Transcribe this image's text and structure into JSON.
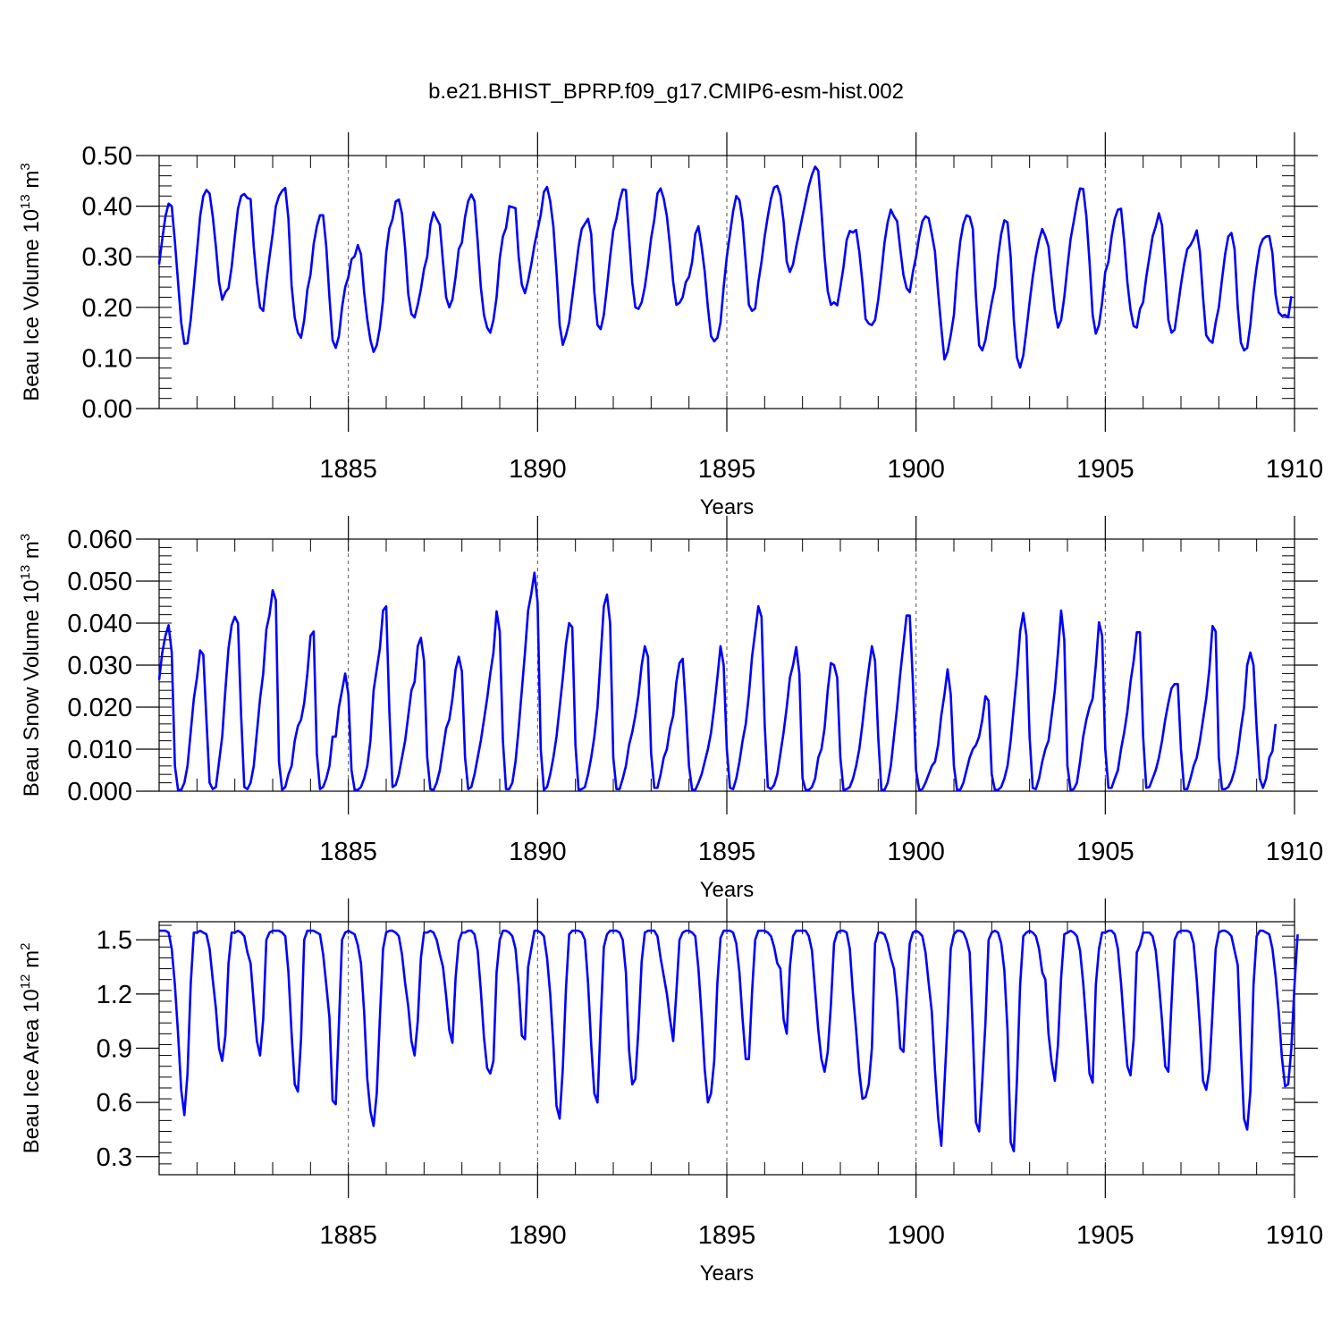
{
  "title": "b.e21.BHIST_BPRP.f09_g17.CMIP6-esm-hist.002",
  "line_color": "#0000ff",
  "chart_data": [
    {
      "type": "line",
      "name": "ice-volume",
      "ylabel": "Beau Ice Volume 10",
      "ylabel_exp": "13",
      "ylabel_unit": " m",
      "ylabel_unit_exp": "3",
      "xlabel": "Years",
      "xlim": [
        1880.0,
        1910.0
      ],
      "ylim": [
        0.0,
        0.5
      ],
      "x_ticks": [
        1885,
        1890,
        1895,
        1900,
        1905,
        1910
      ],
      "x_tick_labels": [
        "1885",
        "1890",
        "1895",
        "1900",
        "1905",
        "1910"
      ],
      "y_ticks": [
        0.0,
        0.1,
        0.2,
        0.3,
        0.4,
        0.5
      ],
      "y_tick_labels": [
        "0.00",
        "0.10",
        "0.20",
        "0.30",
        "0.40",
        "0.50"
      ],
      "y_minor_step": 0.02,
      "x_minor_step": 1,
      "start": 1880.0,
      "step": 0.0833333,
      "values": [
        0.285,
        0.335,
        0.38,
        0.405,
        0.4,
        0.33,
        0.25,
        0.17,
        0.128,
        0.129,
        0.175,
        0.24,
        0.31,
        0.38,
        0.42,
        0.432,
        0.425,
        0.38,
        0.32,
        0.25,
        0.215,
        0.23,
        0.238,
        0.28,
        0.34,
        0.395,
        0.42,
        0.424,
        0.416,
        0.414,
        0.32,
        0.25,
        0.2,
        0.193,
        0.25,
        0.3,
        0.345,
        0.4,
        0.42,
        0.43,
        0.436,
        0.375,
        0.243,
        0.18,
        0.15,
        0.14,
        0.175,
        0.235,
        0.265,
        0.325,
        0.36,
        0.382,
        0.382,
        0.32,
        0.22,
        0.135,
        0.12,
        0.143,
        0.2,
        0.24,
        0.26,
        0.295,
        0.301,
        0.323,
        0.305,
        0.23,
        0.176,
        0.135,
        0.112,
        0.125,
        0.16,
        0.215,
        0.308,
        0.356,
        0.374,
        0.409,
        0.413,
        0.385,
        0.317,
        0.226,
        0.187,
        0.18,
        0.205,
        0.236,
        0.276,
        0.3,
        0.363,
        0.388,
        0.375,
        0.363,
        0.29,
        0.22,
        0.2,
        0.216,
        0.26,
        0.315,
        0.328,
        0.379,
        0.41,
        0.423,
        0.41,
        0.33,
        0.24,
        0.185,
        0.16,
        0.15,
        0.175,
        0.22,
        0.297,
        0.34,
        0.357,
        0.4,
        0.398,
        0.396,
        0.3,
        0.245,
        0.228,
        0.253,
        0.285,
        0.323,
        0.353,
        0.383,
        0.428,
        0.438,
        0.41,
        0.36,
        0.27,
        0.165,
        0.126,
        0.145,
        0.17,
        0.22,
        0.27,
        0.32,
        0.355,
        0.365,
        0.375,
        0.345,
        0.23,
        0.165,
        0.157,
        0.185,
        0.24,
        0.3,
        0.352,
        0.375,
        0.411,
        0.433,
        0.432,
        0.34,
        0.25,
        0.2,
        0.197,
        0.21,
        0.24,
        0.285,
        0.337,
        0.373,
        0.425,
        0.435,
        0.415,
        0.38,
        0.32,
        0.25,
        0.205,
        0.209,
        0.22,
        0.25,
        0.26,
        0.29,
        0.345,
        0.36,
        0.32,
        0.27,
        0.2,
        0.143,
        0.133,
        0.14,
        0.17,
        0.24,
        0.3,
        0.345,
        0.39,
        0.42,
        0.412,
        0.37,
        0.29,
        0.205,
        0.193,
        0.198,
        0.25,
        0.29,
        0.34,
        0.38,
        0.415,
        0.437,
        0.44,
        0.421,
        0.37,
        0.29,
        0.27,
        0.285,
        0.32,
        0.35,
        0.38,
        0.41,
        0.44,
        0.462,
        0.478,
        0.47,
        0.39,
        0.3,
        0.232,
        0.205,
        0.21,
        0.204,
        0.24,
        0.28,
        0.333,
        0.351,
        0.348,
        0.353,
        0.31,
        0.25,
        0.177,
        0.168,
        0.165,
        0.175,
        0.215,
        0.268,
        0.328,
        0.368,
        0.393,
        0.38,
        0.37,
        0.315,
        0.264,
        0.238,
        0.23,
        0.27,
        0.3,
        0.34,
        0.37,
        0.38,
        0.376,
        0.345,
        0.31,
        0.23,
        0.16,
        0.097,
        0.112,
        0.145,
        0.185,
        0.27,
        0.33,
        0.365,
        0.382,
        0.379,
        0.355,
        0.22,
        0.125,
        0.115,
        0.135,
        0.175,
        0.21,
        0.24,
        0.3,
        0.345,
        0.372,
        0.368,
        0.3,
        0.175,
        0.101,
        0.081,
        0.105,
        0.155,
        0.21,
        0.26,
        0.302,
        0.333,
        0.355,
        0.34,
        0.32,
        0.255,
        0.195,
        0.16,
        0.175,
        0.22,
        0.28,
        0.335,
        0.37,
        0.406,
        0.435,
        0.434,
        0.38,
        0.29,
        0.185,
        0.148,
        0.165,
        0.21,
        0.27,
        0.29,
        0.34,
        0.375,
        0.393,
        0.395,
        0.33,
        0.25,
        0.195,
        0.163,
        0.16,
        0.197,
        0.21,
        0.26,
        0.3,
        0.34,
        0.36,
        0.386,
        0.362,
        0.27,
        0.175,
        0.15,
        0.156,
        0.2,
        0.245,
        0.285,
        0.315,
        0.323,
        0.335,
        0.352,
        0.31,
        0.22,
        0.145,
        0.135,
        0.13,
        0.17,
        0.2,
        0.255,
        0.305,
        0.34,
        0.347,
        0.315,
        0.2,
        0.13,
        0.115,
        0.12,
        0.165,
        0.23,
        0.28,
        0.32,
        0.335,
        0.34,
        0.341,
        0.307,
        0.225,
        0.19,
        0.183,
        0.185,
        0.18,
        0.222
      ]
    },
    {
      "type": "line",
      "name": "snow-volume",
      "ylabel": "Beau Snow Volume 10",
      "ylabel_exp": "13",
      "ylabel_unit": " m",
      "ylabel_unit_exp": "3",
      "xlabel": "Years",
      "xlim": [
        1880.0,
        1910.0
      ],
      "ylim": [
        0.0,
        0.06
      ],
      "x_ticks": [
        1885,
        1890,
        1895,
        1900,
        1905,
        1910
      ],
      "x_tick_labels": [
        "1885",
        "1890",
        "1895",
        "1900",
        "1905",
        "1910"
      ],
      "y_ticks": [
        0.0,
        0.01,
        0.02,
        0.03,
        0.04,
        0.05,
        0.06
      ],
      "y_tick_labels": [
        "0.000",
        "0.010",
        "0.020",
        "0.030",
        "0.040",
        "0.050",
        "0.060"
      ],
      "y_minor_step": 0.002,
      "x_minor_step": 1,
      "start": 1880.0,
      "step": 0.0833333,
      "values": [
        0.0265,
        0.033,
        0.037,
        0.0395,
        0.033,
        0.006,
        0.0003,
        0.0003,
        0.002,
        0.006,
        0.014,
        0.022,
        0.027,
        0.0335,
        0.0325,
        0.017,
        0.002,
        0.0005,
        0.001,
        0.007,
        0.013,
        0.024,
        0.034,
        0.0395,
        0.0415,
        0.04,
        0.018,
        0.001,
        0.0005,
        0.002,
        0.006,
        0.014,
        0.022,
        0.028,
        0.0385,
        0.042,
        0.0478,
        0.0455,
        0.007,
        0.0003,
        0.001,
        0.004,
        0.006,
        0.012,
        0.0155,
        0.017,
        0.021,
        0.028,
        0.037,
        0.038,
        0.009,
        0.0005,
        0.001,
        0.003,
        0.006,
        0.013,
        0.013,
        0.02,
        0.024,
        0.028,
        0.023,
        0.005,
        0.0003,
        0.0003,
        0.001,
        0.003,
        0.006,
        0.012,
        0.024,
        0.029,
        0.034,
        0.043,
        0.044,
        0.019,
        0.001,
        0.0015,
        0.004,
        0.008,
        0.012,
        0.018,
        0.024,
        0.026,
        0.0345,
        0.0365,
        0.031,
        0.008,
        0.0005,
        0.0003,
        0.002,
        0.005,
        0.01,
        0.015,
        0.017,
        0.022,
        0.029,
        0.032,
        0.0285,
        0.008,
        0.0005,
        0.001,
        0.004,
        0.008,
        0.012,
        0.017,
        0.022,
        0.028,
        0.033,
        0.0428,
        0.038,
        0.012,
        0.0005,
        0.0005,
        0.002,
        0.007,
        0.015,
        0.024,
        0.033,
        0.043,
        0.047,
        0.052,
        0.045,
        0.01,
        0.0003,
        0.001,
        0.004,
        0.008,
        0.013,
        0.02,
        0.027,
        0.035,
        0.04,
        0.039,
        0.011,
        0.0003,
        0.0005,
        0.001,
        0.004,
        0.008,
        0.013,
        0.02,
        0.032,
        0.044,
        0.0468,
        0.04,
        0.008,
        0.0005,
        0.0005,
        0.003,
        0.006,
        0.011,
        0.014,
        0.018,
        0.023,
        0.03,
        0.0345,
        0.032,
        0.009,
        0.0008,
        0.0008,
        0.004,
        0.008,
        0.01,
        0.015,
        0.018,
        0.026,
        0.0305,
        0.0315,
        0.02,
        0.006,
        0.0003,
        0.0003,
        0.002,
        0.004,
        0.007,
        0.01,
        0.014,
        0.02,
        0.027,
        0.0345,
        0.03,
        0.01,
        0.0008,
        0.0005,
        0.003,
        0.007,
        0.012,
        0.016,
        0.023,
        0.032,
        0.038,
        0.044,
        0.0415,
        0.016,
        0.001,
        0.0005,
        0.0015,
        0.004,
        0.009,
        0.014,
        0.02,
        0.027,
        0.03,
        0.0343,
        0.028,
        0.003,
        0.0003,
        0.0003,
        0.001,
        0.003,
        0.008,
        0.01,
        0.015,
        0.024,
        0.0305,
        0.03,
        0.027,
        0.008,
        0.0003,
        0.0005,
        0.001,
        0.003,
        0.006,
        0.01,
        0.016,
        0.023,
        0.029,
        0.0345,
        0.031,
        0.013,
        0.0003,
        0.0003,
        0.002,
        0.006,
        0.013,
        0.02,
        0.028,
        0.035,
        0.0418,
        0.0418,
        0.026,
        0.005,
        0.0003,
        0.0005,
        0.002,
        0.004,
        0.006,
        0.007,
        0.011,
        0.018,
        0.023,
        0.029,
        0.023,
        0.006,
        0.0003,
        0.0003,
        0.002,
        0.005,
        0.008,
        0.01,
        0.011,
        0.013,
        0.017,
        0.0226,
        0.0215,
        0.004,
        0.0003,
        0.0003,
        0.001,
        0.003,
        0.006,
        0.012,
        0.02,
        0.028,
        0.038,
        0.0424,
        0.037,
        0.013,
        0.0008,
        0.0005,
        0.003,
        0.007,
        0.01,
        0.012,
        0.018,
        0.024,
        0.033,
        0.043,
        0.036,
        0.006,
        0.0003,
        0.0005,
        0.002,
        0.007,
        0.013,
        0.017,
        0.02,
        0.022,
        0.03,
        0.0402,
        0.037,
        0.01,
        0.0008,
        0.0008,
        0.003,
        0.005,
        0.01,
        0.014,
        0.019,
        0.026,
        0.031,
        0.0378,
        0.0378,
        0.013,
        0.0008,
        0.001,
        0.003,
        0.005,
        0.008,
        0.012,
        0.017,
        0.021,
        0.0245,
        0.0255,
        0.0255,
        0.01,
        0.0005,
        0.0005,
        0.003,
        0.006,
        0.008,
        0.012,
        0.017,
        0.022,
        0.029,
        0.0393,
        0.038,
        0.008,
        0.0005,
        0.0005,
        0.001,
        0.0025,
        0.005,
        0.009,
        0.015,
        0.02,
        0.03,
        0.033,
        0.03,
        0.015,
        0.003,
        0.0008,
        0.003,
        0.008,
        0.0095,
        0.016
      ]
    },
    {
      "type": "line",
      "name": "ice-area",
      "ylabel": "Beau Ice Area 10",
      "ylabel_exp": "12",
      "ylabel_unit": " m",
      "ylabel_unit_exp": "2",
      "xlabel": "Years",
      "xlim": [
        1880.0,
        1910.0
      ],
      "ylim": [
        0.2,
        1.6
      ],
      "x_ticks": [
        1885,
        1890,
        1895,
        1900,
        1905,
        1910
      ],
      "x_tick_labels": [
        "1885",
        "1890",
        "1895",
        "1900",
        "1905",
        "1910"
      ],
      "y_ticks": [
        0.3,
        0.6,
        0.9,
        1.2,
        1.5
      ],
      "y_tick_labels": [
        "0.3",
        "0.6",
        "0.9",
        "1.2",
        "1.5"
      ],
      "y_minor_step": 0.06,
      "x_minor_step": 1,
      "start": 1880.0,
      "step": 0.0833333,
      "values": [
        1.55,
        1.55,
        1.55,
        1.54,
        1.45,
        1.25,
        0.98,
        0.67,
        0.53,
        0.76,
        1.25,
        1.54,
        1.54,
        1.55,
        1.54,
        1.53,
        1.45,
        1.28,
        1.12,
        0.9,
        0.83,
        0.97,
        1.37,
        1.54,
        1.54,
        1.55,
        1.54,
        1.52,
        1.43,
        1.37,
        1.15,
        0.94,
        0.86,
        1.06,
        1.5,
        1.54,
        1.55,
        1.55,
        1.55,
        1.54,
        1.52,
        1.32,
        0.98,
        0.7,
        0.66,
        0.95,
        1.5,
        1.55,
        1.55,
        1.55,
        1.54,
        1.53,
        1.42,
        1.25,
        1.07,
        0.61,
        0.59,
        1.03,
        1.5,
        1.54,
        1.55,
        1.54,
        1.53,
        1.47,
        1.37,
        1.1,
        0.73,
        0.55,
        0.47,
        0.65,
        1.07,
        1.45,
        1.54,
        1.55,
        1.55,
        1.54,
        1.52,
        1.42,
        1.26,
        1.13,
        0.94,
        0.86,
        1.05,
        1.4,
        1.54,
        1.54,
        1.55,
        1.54,
        1.5,
        1.42,
        1.35,
        1.19,
        1.0,
        0.93,
        1.29,
        1.49,
        1.54,
        1.54,
        1.55,
        1.55,
        1.53,
        1.44,
        1.22,
        0.96,
        0.79,
        0.76,
        0.83,
        1.32,
        1.5,
        1.55,
        1.55,
        1.54,
        1.52,
        1.45,
        1.25,
        0.97,
        0.95,
        1.35,
        1.45,
        1.55,
        1.55,
        1.54,
        1.52,
        1.4,
        1.2,
        0.92,
        0.58,
        0.51,
        0.79,
        1.23,
        1.53,
        1.55,
        1.55,
        1.55,
        1.54,
        1.5,
        1.26,
        0.92,
        0.65,
        0.6,
        1.05,
        1.46,
        1.53,
        1.55,
        1.55,
        1.55,
        1.54,
        1.5,
        1.32,
        0.89,
        0.7,
        0.73,
        1.01,
        1.38,
        1.54,
        1.55,
        1.55,
        1.55,
        1.52,
        1.4,
        1.3,
        1.2,
        1.06,
        0.94,
        1.21,
        1.5,
        1.54,
        1.55,
        1.55,
        1.54,
        1.52,
        1.34,
        1.08,
        0.78,
        0.6,
        0.65,
        0.83,
        1.26,
        1.51,
        1.55,
        1.55,
        1.55,
        1.54,
        1.48,
        1.32,
        1.06,
        0.84,
        0.84,
        1.21,
        1.5,
        1.55,
        1.55,
        1.55,
        1.54,
        1.52,
        1.46,
        1.37,
        1.34,
        1.06,
        0.98,
        1.35,
        1.52,
        1.55,
        1.55,
        1.55,
        1.55,
        1.52,
        1.44,
        1.22,
        1.0,
        0.84,
        0.77,
        0.88,
        1.14,
        1.48,
        1.54,
        1.55,
        1.55,
        1.54,
        1.45,
        1.2,
        1.0,
        0.77,
        0.62,
        0.63,
        0.7,
        0.9,
        1.48,
        1.54,
        1.54,
        1.53,
        1.48,
        1.4,
        1.34,
        1.17,
        0.9,
        0.88,
        1.2,
        1.48,
        1.54,
        1.55,
        1.54,
        1.52,
        1.43,
        1.26,
        1.1,
        0.78,
        0.52,
        0.36,
        0.7,
        1.05,
        1.45,
        1.53,
        1.55,
        1.55,
        1.54,
        1.5,
        1.43,
        0.99,
        0.49,
        0.44,
        0.72,
        1.04,
        1.5,
        1.54,
        1.55,
        1.54,
        1.48,
        1.33,
        1.0,
        0.38,
        0.33,
        0.73,
        1.25,
        1.52,
        1.54,
        1.55,
        1.54,
        1.52,
        1.45,
        1.32,
        1.28,
        0.98,
        0.82,
        0.72,
        0.92,
        1.29,
        1.53,
        1.54,
        1.55,
        1.54,
        1.52,
        1.44,
        1.26,
        1.03,
        0.76,
        0.71,
        1.25,
        1.45,
        1.54,
        1.54,
        1.55,
        1.55,
        1.53,
        1.45,
        1.26,
        1.02,
        0.8,
        0.75,
        0.95,
        1.43,
        1.47,
        1.54,
        1.54,
        1.54,
        1.52,
        1.44,
        1.26,
        1.05,
        0.8,
        0.77,
        1.15,
        1.5,
        1.54,
        1.55,
        1.55,
        1.55,
        1.54,
        1.48,
        1.28,
        1.02,
        0.72,
        0.67,
        0.78,
        1.1,
        1.45,
        1.54,
        1.55,
        1.55,
        1.54,
        1.52,
        1.44,
        1.36,
        0.9,
        0.51,
        0.45,
        0.66,
        1.25,
        1.52,
        1.55,
        1.55,
        1.54,
        1.53,
        1.45,
        1.3,
        1.1,
        0.85,
        0.69,
        0.7,
        0.9,
        1.25,
        1.53
      ]
    }
  ]
}
